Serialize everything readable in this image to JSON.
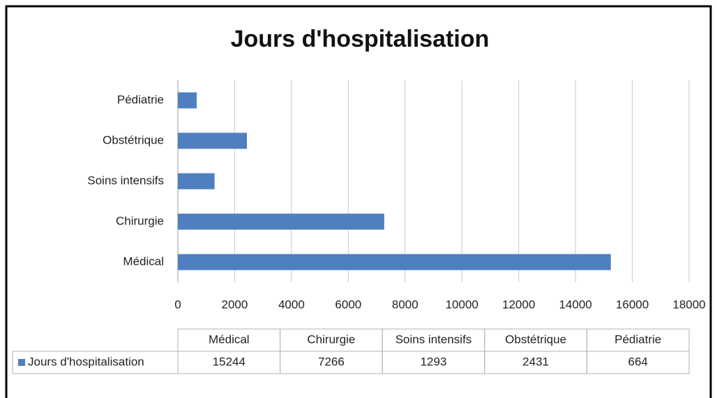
{
  "chart_data": {
    "type": "bar",
    "orientation": "horizontal",
    "title": "Jours d'hospitalisation",
    "categories": [
      "Médical",
      "Chirurgie",
      "Soins intensifs",
      "Obstétrique",
      "Pédiatrie"
    ],
    "series": [
      {
        "name": "Jours d'hospitalisation",
        "color": "#4f7fbf",
        "values": [
          15244,
          7266,
          1293,
          2431,
          664
        ]
      }
    ],
    "xlim": [
      0,
      18000
    ],
    "xticks": [
      0,
      2000,
      4000,
      6000,
      8000,
      10000,
      12000,
      14000,
      16000,
      18000
    ],
    "grid": true,
    "data_table": true
  }
}
